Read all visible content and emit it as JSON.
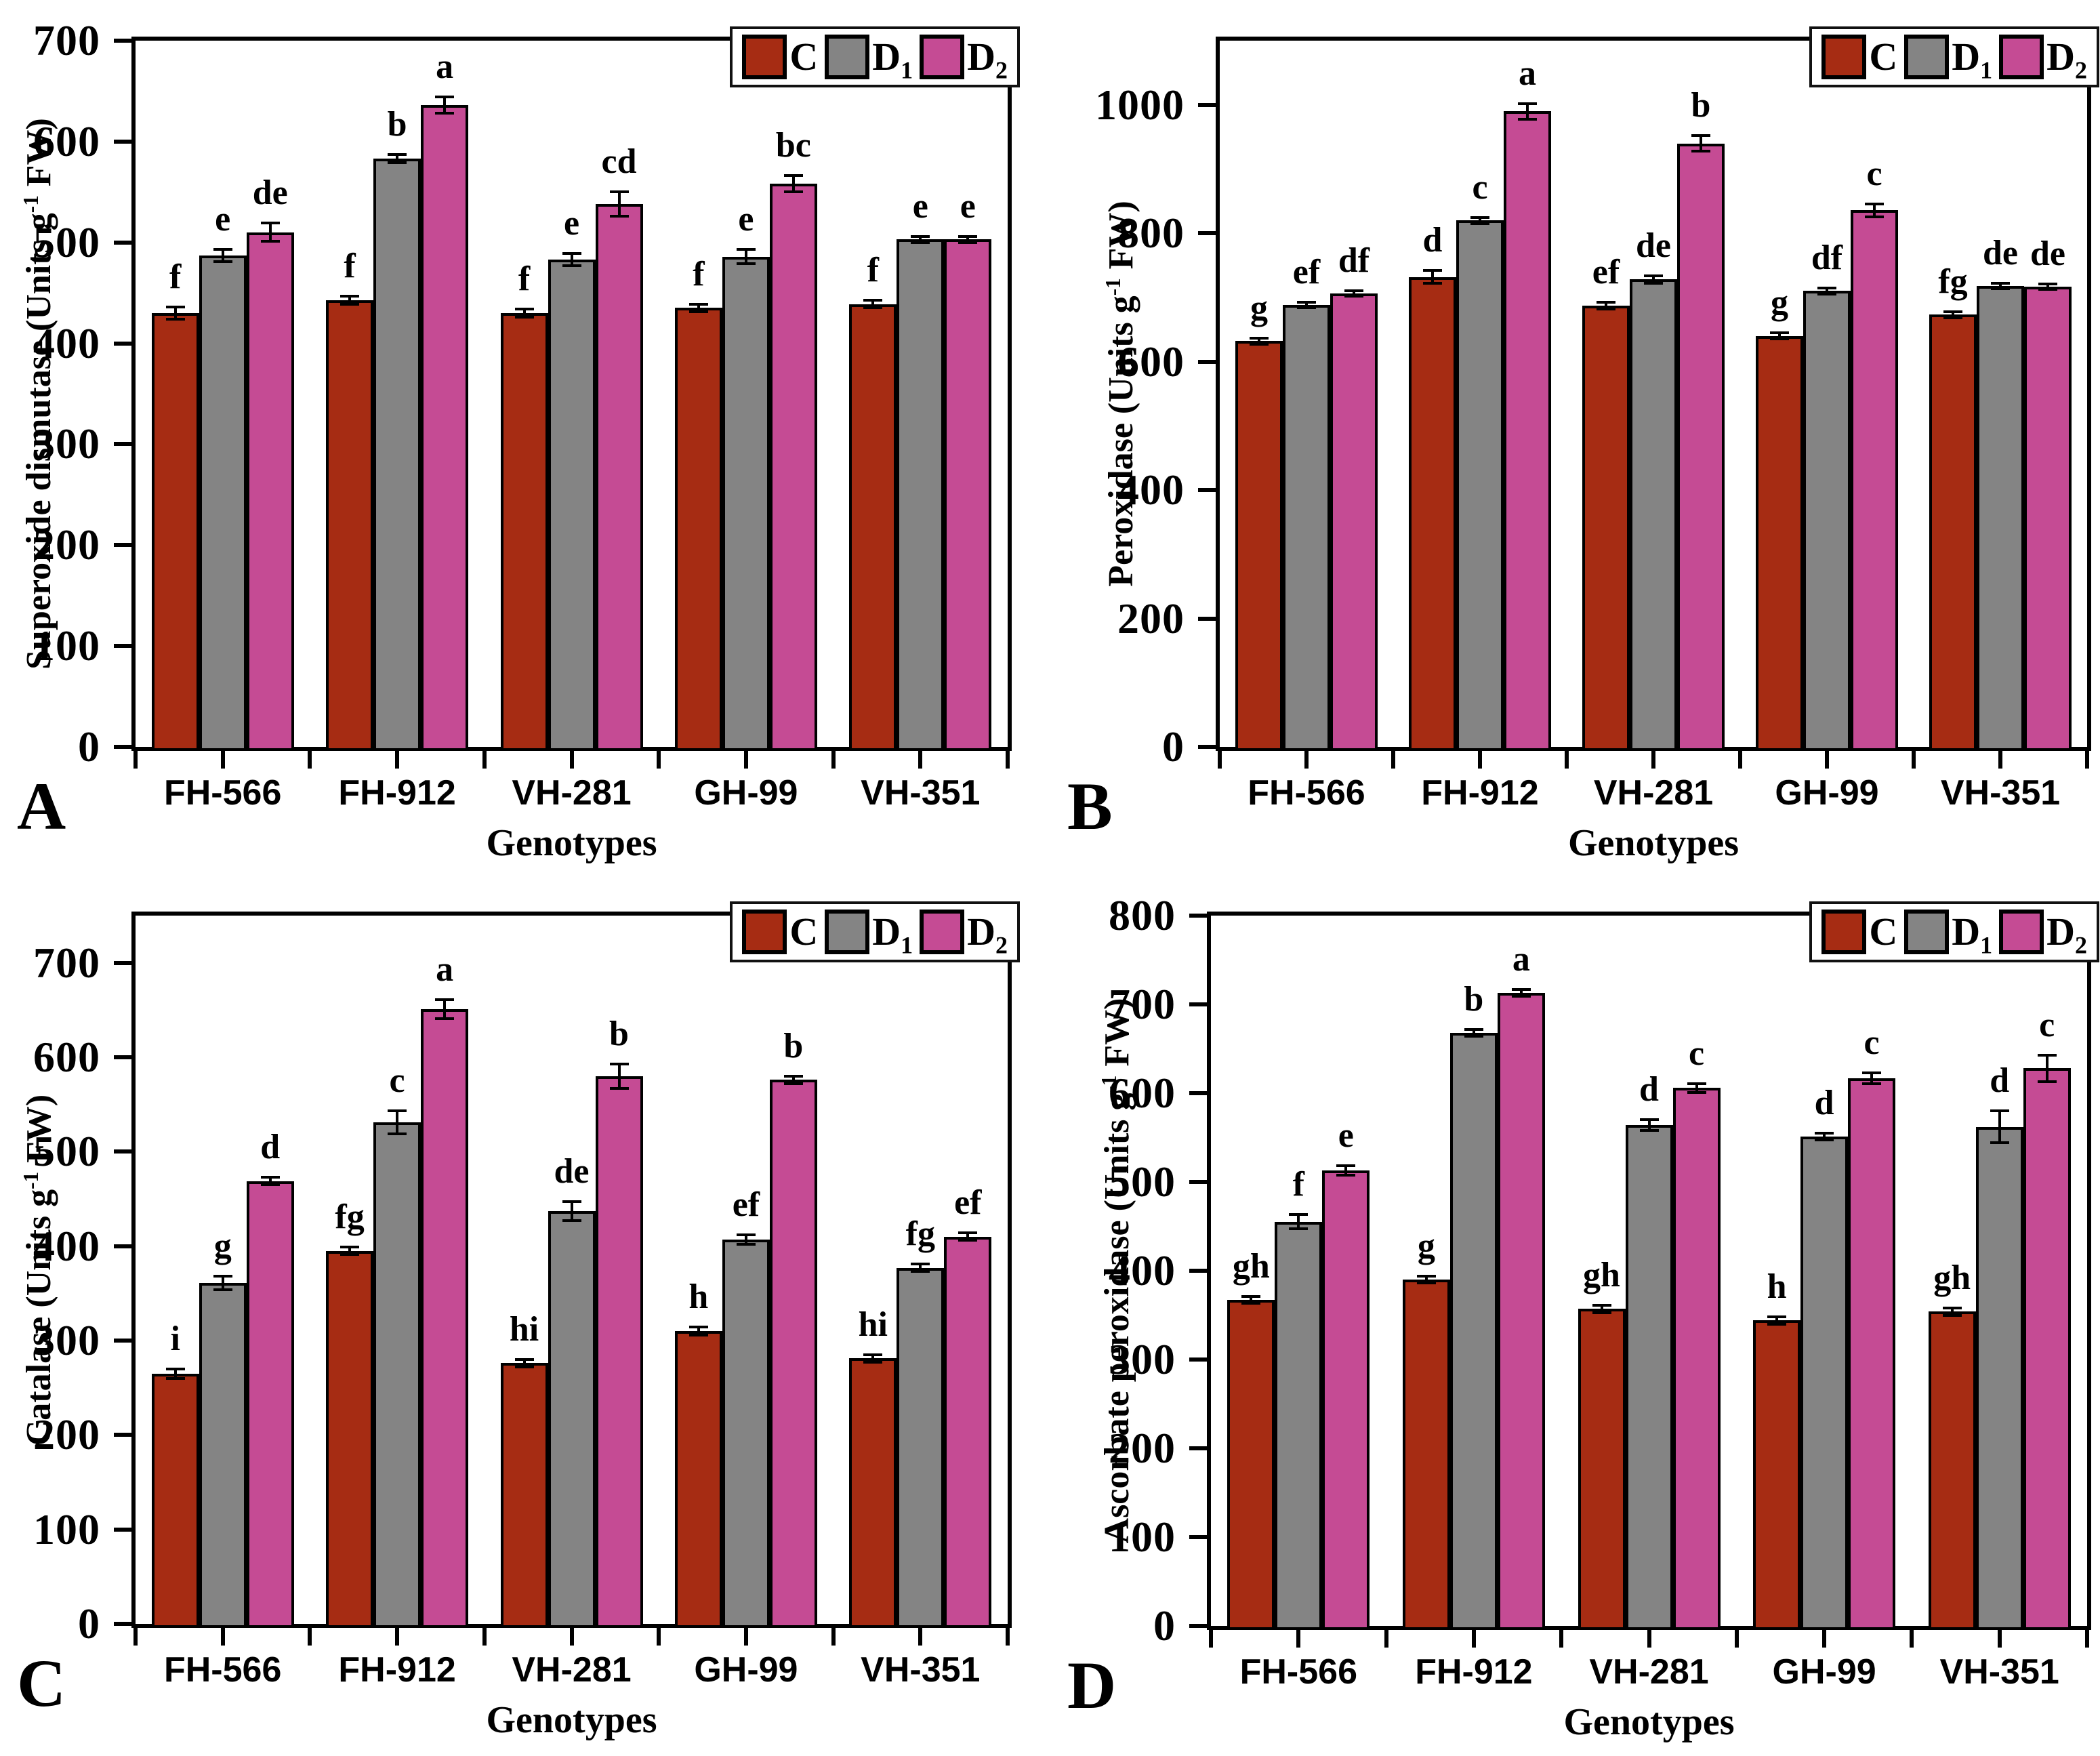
{
  "figure": {
    "background": "#ffffff",
    "colors": {
      "C": "#A62C13",
      "D1": "#848484",
      "D2": "#C54B94",
      "bar_border": "#000000",
      "axis": "#000000"
    },
    "legend": {
      "items": [
        {
          "key": "C",
          "base": "C",
          "sub": ""
        },
        {
          "key": "D1",
          "base": "D",
          "sub": "1"
        },
        {
          "key": "D2",
          "base": "D",
          "sub": "2"
        }
      ],
      "position": "top-right"
    },
    "panel_letters": [
      "A",
      "B",
      "C",
      "D"
    ],
    "xlabel": "Genotypes",
    "genotypes": [
      "FH-566",
      "FH-912",
      "VH-281",
      "GH-99",
      "VH-351"
    ]
  },
  "chart_data": [
    {
      "id": "A",
      "type": "bar",
      "title": "",
      "ylabel_pre": "Superoxide dismutase (Units g",
      "ylabel_sup": "-1",
      "ylabel_post": " FW)",
      "xlabel": "Genotypes",
      "categories": [
        "FH-566",
        "FH-912",
        "VH-281",
        "GH-99",
        "VH-351"
      ],
      "ylim": [
        0,
        700
      ],
      "yticks": [
        0,
        100,
        200,
        300,
        400,
        500,
        600,
        700
      ],
      "grid": false,
      "legend_position": "top-right",
      "series": [
        {
          "name": "C",
          "values": [
            430,
            443,
            430,
            435,
            439
          ],
          "errors": [
            6,
            4,
            4,
            4,
            4
          ],
          "letters": [
            "f",
            "f",
            "f",
            "f",
            "f"
          ]
        },
        {
          "name": "D1",
          "values": [
            487,
            583,
            483,
            486,
            503
          ],
          "errors": [
            6,
            4,
            6,
            7,
            3
          ],
          "letters": [
            "e",
            "b",
            "e",
            "e",
            "e"
          ]
        },
        {
          "name": "D2",
          "values": [
            510,
            636,
            538,
            558,
            503
          ],
          "errors": [
            9,
            8,
            12,
            8,
            3
          ],
          "letters": [
            "de",
            "a",
            "cd",
            "bc",
            "e"
          ]
        }
      ]
    },
    {
      "id": "B",
      "type": "bar",
      "title": "",
      "ylabel_pre": "Peroxidase (Units g",
      "ylabel_sup": "-1",
      "ylabel_post": " FW)",
      "xlabel": "Genotypes",
      "categories": [
        "FH-566",
        "FH-912",
        "VH-281",
        "GH-99",
        "VH-351"
      ],
      "ylim": [
        0,
        1100
      ],
      "yticks": [
        0,
        200,
        400,
        600,
        800,
        1000
      ],
      "grid": false,
      "legend_position": "top-right",
      "series": [
        {
          "name": "C",
          "values": [
            632,
            732,
            687,
            640,
            673
          ],
          "errors": [
            5,
            10,
            5,
            5,
            5
          ],
          "letters": [
            "g",
            "d",
            "ef",
            "g",
            "fg"
          ]
        },
        {
          "name": "D1",
          "values": [
            688,
            820,
            728,
            710,
            718
          ],
          "errors": [
            4,
            5,
            6,
            5,
            4
          ],
          "letters": [
            "ef",
            "c",
            "de",
            "df",
            "de"
          ]
        },
        {
          "name": "D2",
          "values": [
            706,
            990,
            940,
            836,
            717
          ],
          "errors": [
            4,
            12,
            12,
            10,
            4
          ],
          "letters": [
            "df",
            "a",
            "b",
            "c",
            "de"
          ]
        }
      ]
    },
    {
      "id": "C",
      "type": "bar",
      "title": "",
      "ylabel_pre": "Catalase (Units g",
      "ylabel_sup": "-1",
      "ylabel_post": " FW)",
      "xlabel": "Genotypes",
      "categories": [
        "FH-566",
        "FH-912",
        "VH-281",
        "GH-99",
        "VH-351"
      ],
      "ylim": [
        0,
        750
      ],
      "yticks": [
        0,
        100,
        200,
        300,
        400,
        500,
        600,
        700
      ],
      "grid": false,
      "legend_position": "top-right",
      "series": [
        {
          "name": "C",
          "values": [
            265,
            395,
            276,
            310,
            281
          ],
          "errors": [
            5,
            4,
            4,
            4,
            4
          ],
          "letters": [
            "i",
            "fg",
            "hi",
            "h",
            "hi"
          ]
        },
        {
          "name": "D1",
          "values": [
            361,
            531,
            437,
            407,
            377
          ],
          "errors": [
            7,
            12,
            10,
            5,
            4
          ],
          "letters": [
            "g",
            "c",
            "de",
            "ef",
            "fg"
          ]
        },
        {
          "name": "D2",
          "values": [
            469,
            651,
            580,
            576,
            410
          ],
          "errors": [
            4,
            10,
            13,
            4,
            4
          ],
          "letters": [
            "d",
            "a",
            "b",
            "b",
            "ef"
          ]
        }
      ]
    },
    {
      "id": "D",
      "type": "bar",
      "title": "",
      "ylabel_pre": "Ascorbate peroxidase (Units g",
      "ylabel_sup": "-1",
      "ylabel_post": " FW)",
      "xlabel": "Genotypes",
      "categories": [
        "FH-566",
        "FH-912",
        "VH-281",
        "GH-99",
        "VH-351"
      ],
      "ylim": [
        0,
        800
      ],
      "yticks": [
        0,
        100,
        200,
        300,
        400,
        500,
        600,
        700,
        800
      ],
      "grid": false,
      "legend_position": "top-right",
      "series": [
        {
          "name": "C",
          "values": [
            367,
            390,
            357,
            344,
            354
          ],
          "errors": [
            4,
            4,
            4,
            4,
            4
          ],
          "letters": [
            "gh",
            "g",
            "gh",
            "h",
            "gh"
          ]
        },
        {
          "name": "D1",
          "values": [
            455,
            668,
            564,
            551,
            562
          ],
          "errors": [
            8,
            4,
            6,
            4,
            18
          ],
          "letters": [
            "f",
            "b",
            "d",
            "d",
            "d"
          ]
        },
        {
          "name": "D2",
          "values": [
            513,
            713,
            606,
            617,
            628
          ],
          "errors": [
            5,
            4,
            5,
            6,
            15
          ],
          "letters": [
            "e",
            "a",
            "c",
            "c",
            "c"
          ]
        }
      ]
    }
  ]
}
